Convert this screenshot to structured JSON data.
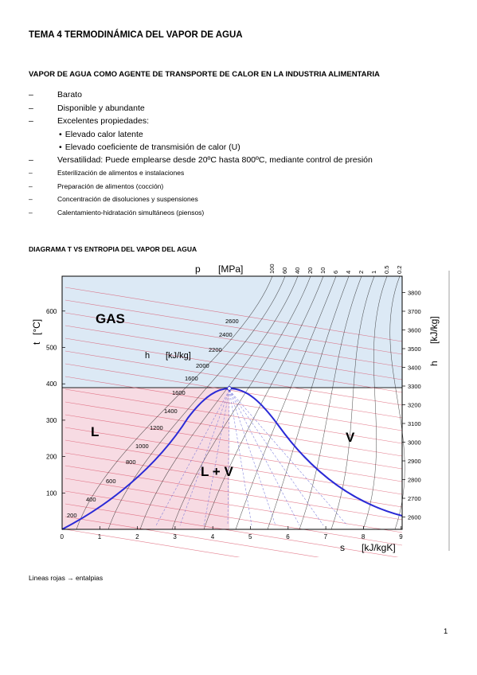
{
  "header": {
    "title": "TEMA 4 TERMODINÁMICA DEL VAPOR DE AGUA",
    "subtitle": "VAPOR DE AGUA COMO AGENTE DE  TRANSPORTE DE CALOR EN LA INDUSTRIA ALIMENTARIA"
  },
  "list": {
    "dash": "–",
    "bullet": "•",
    "items": [
      "Barato",
      "Disponible y abundante",
      "Excelentes propiedades:",
      "Elevado calor latente",
      "Elevado coeficiente de transmisión de calor (U)",
      "Versatilidad: Puede emplearse desde 20ºC hasta 800ºC, mediante control de presión",
      "Esterilización de alimentos e instalaciones",
      "Preparación de alimentos (cocción)",
      "Concentración de disoluciones y suspensiones",
      "Calentamiento-hidratación simultáneos (piensos)"
    ]
  },
  "diagram": {
    "heading": "DIAGRAMA T VS ENTROPIA DEL VAPOR DEL AGUA",
    "colors": {
      "gas_region": "#dce9f5",
      "liquid_region": "#f7dbe3",
      "dome": "#2a2ad6",
      "enthalpy_lines": "#d9485f",
      "isobars": "#1f1f1f",
      "quality_lines": "#6b6bd8"
    },
    "labels": {
      "pressure": "p",
      "pressure_unit": "[MPa]",
      "temperature": "t",
      "temperature_unit": "[°C]",
      "enthalpy": "h",
      "enthalpy_unit": "[kJ/kg]",
      "entropy": "s",
      "entropy_unit": "[kJ/kgK]",
      "gas": "GAS",
      "liquid": "L",
      "vapor": "V",
      "mixture": "L + V"
    },
    "pressure_ticks": [
      "100",
      "60",
      "40",
      "20",
      "10",
      "6",
      "4",
      "2",
      "1",
      "0.5",
      "0.2"
    ],
    "temperature_ticks": [
      "100",
      "200",
      "300",
      "400",
      "500",
      "600"
    ],
    "entropy_ticks": [
      "0",
      "1",
      "2",
      "3",
      "4",
      "5",
      "6",
      "7",
      "8",
      "9"
    ],
    "enthalpy_right_ticks": [
      "2600",
      "2700",
      "2800",
      "2900",
      "3000",
      "3100",
      "3200",
      "3300",
      "3400",
      "3500",
      "3600",
      "3700",
      "3800"
    ],
    "enthalpy_inner_ticks": [
      "200",
      "400",
      "600",
      "800",
      "1000",
      "1200",
      "1400",
      "1600",
      "1600",
      "2000",
      "2200",
      "2400",
      "2600"
    ]
  },
  "footer": {
    "caption": "Lineas rojas → entalpias",
    "page_number": "1"
  }
}
